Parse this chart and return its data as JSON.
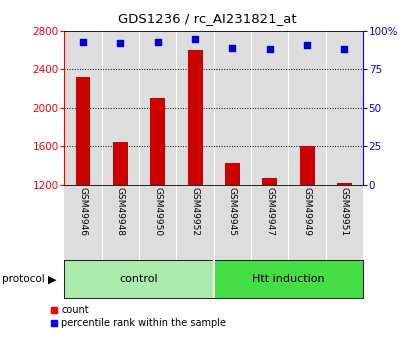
{
  "title": "GDS1236 / rc_AI231821_at",
  "samples": [
    "GSM49946",
    "GSM49948",
    "GSM49950",
    "GSM49952",
    "GSM49945",
    "GSM49947",
    "GSM49949",
    "GSM49951"
  ],
  "counts": [
    2320,
    1640,
    2100,
    2600,
    1430,
    1270,
    1600,
    1215
  ],
  "percentile_ranks": [
    93,
    92,
    93,
    95,
    89,
    88,
    91,
    88
  ],
  "group_names": [
    "control",
    "control",
    "control",
    "control",
    "Htt induction",
    "Htt induction",
    "Htt induction",
    "Htt induction"
  ],
  "group_colors": {
    "control": "#AAEAAA",
    "Htt induction": "#44DD44"
  },
  "bar_color": "#CC0000",
  "dot_color": "#0000CC",
  "ylim_left": [
    1200,
    2800
  ],
  "ylim_right": [
    0,
    100
  ],
  "yticks_left": [
    1200,
    1600,
    2000,
    2400,
    2800
  ],
  "yticks_right": [
    0,
    25,
    50,
    75,
    100
  ],
  "yticklabels_right": [
    "0",
    "25",
    "50",
    "75",
    "100%"
  ],
  "grid_values": [
    1600,
    2000,
    2400
  ],
  "bg_color_col": "#DDDDDD",
  "separator_color": "#FFFFFF",
  "group_spans": [
    [
      "control",
      0,
      3
    ],
    [
      "Htt induction",
      4,
      7
    ]
  ]
}
